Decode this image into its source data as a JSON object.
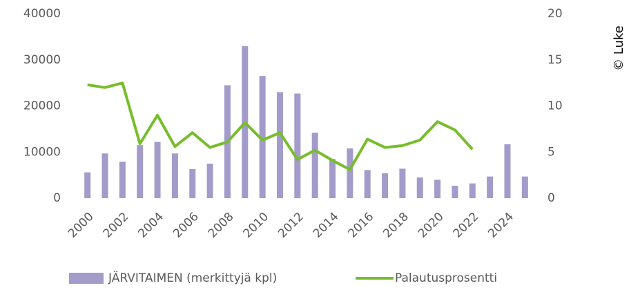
{
  "chart_data": {
    "type": "bar",
    "annotations": [
      "© Luke"
    ],
    "categories": [
      "2000",
      null,
      "2002",
      null,
      "2004",
      null,
      "2006",
      null,
      "2008",
      null,
      "2010",
      null,
      "2012",
      null,
      "2014",
      null,
      "2016",
      null,
      "2018",
      null,
      "2020",
      null,
      "2022",
      null,
      "2024",
      null
    ],
    "series": [
      {
        "name": "JÄRVITAIMEN (merkittyjä kpl)",
        "type": "bar",
        "color": "#a39bc9",
        "values": [
          5600,
          9700,
          7900,
          11500,
          12200,
          9700,
          6300,
          7500,
          24500,
          33000,
          26500,
          23000,
          22700,
          14200,
          8500,
          10800,
          6100,
          5400,
          6400,
          4500,
          4000,
          2700,
          3200,
          4700,
          11700,
          4700
        ]
      },
      {
        "name": "Palautusprosentti",
        "type": "line",
        "axis": "y2",
        "color": "#77bd2b",
        "values": [
          12.3,
          12.0,
          12.5,
          5.9,
          9.0,
          5.6,
          7.1,
          5.5,
          6.1,
          8.2,
          6.3,
          7.1,
          4.2,
          5.2,
          4.1,
          3.1,
          6.4,
          5.5,
          5.7,
          6.3,
          8.3,
          7.4,
          5.3,
          null,
          null,
          null
        ]
      }
    ],
    "ylim": [
      0,
      40000
    ],
    "yticks": [
      0,
      10000,
      20000,
      30000,
      40000
    ],
    "y2lim": [
      0,
      20
    ],
    "y2ticks": [
      0,
      5,
      10,
      15,
      20
    ],
    "grid": false,
    "legend": "bottom"
  }
}
